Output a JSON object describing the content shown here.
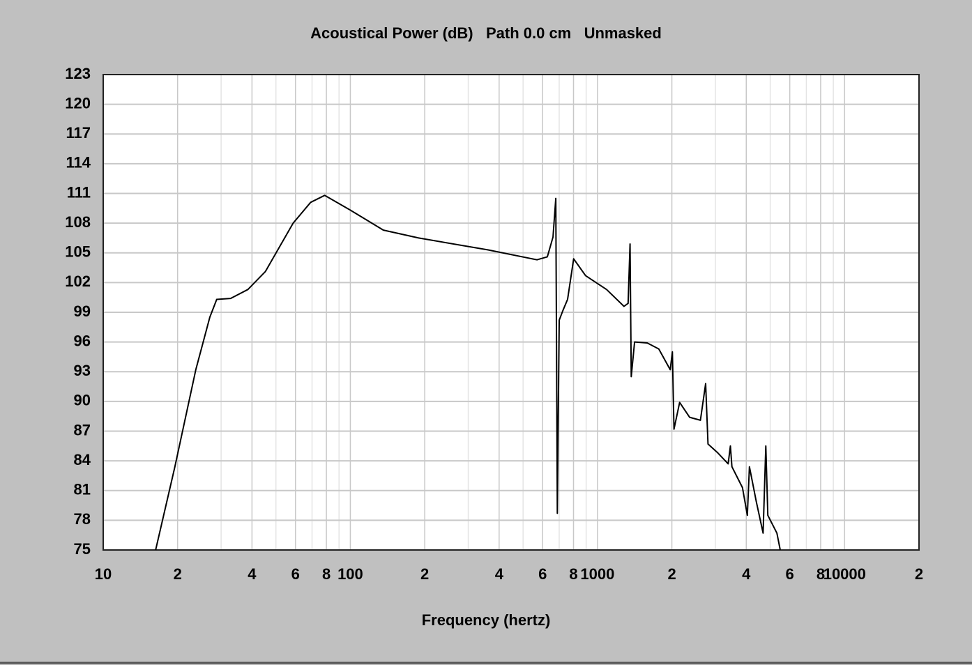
{
  "chart_data": {
    "type": "line",
    "title": "Acoustical Power (dB)   Path 0.0 cm   Unmasked",
    "x_label": "Frequency (hertz)",
    "xscale": "log",
    "grid": true,
    "color": "#000000",
    "xlim": [
      10,
      20000
    ],
    "ylim": [
      75,
      123
    ],
    "xticks": [
      10,
      {
        "value": 20,
        "label": "2"
      },
      {
        "value": 40,
        "label": "4"
      },
      {
        "value": 60,
        "label": "6"
      },
      {
        "value": 80,
        "label": "8"
      },
      100,
      {
        "value": 200,
        "label": "2"
      },
      {
        "value": 400,
        "label": "4"
      },
      {
        "value": 600,
        "label": "6"
      },
      {
        "value": 800,
        "label": "8"
      },
      1000,
      {
        "value": 2000,
        "label": "2"
      },
      {
        "value": 4000,
        "label": "4"
      },
      {
        "value": 6000,
        "label": "6"
      },
      {
        "value": 8000,
        "label": "8"
      },
      10000,
      {
        "value": 20000,
        "label": "2"
      }
    ],
    "xminor": [
      30,
      50,
      70,
      90,
      300,
      500,
      700,
      900,
      3000,
      5000,
      7000,
      9000
    ],
    "yticks": [
      75,
      78,
      81,
      84,
      87,
      90,
      93,
      96,
      99,
      102,
      105,
      108,
      111,
      114,
      117,
      120,
      123
    ],
    "x": [
      16.3,
      19.5,
      23.7,
      27,
      28.8,
      32.8,
      38.5,
      45.3,
      58.7,
      69.1,
      78.7,
      98.7,
      136,
      189,
      361,
      569,
      627,
      661,
      678,
      683,
      688,
      693,
      700,
      725,
      757,
      801,
      895,
      1088,
      1280,
      1330,
      1355,
      1370,
      1413,
      1590,
      1770,
      1970,
      2010,
      2040,
      2150,
      2360,
      2610,
      2740,
      2800,
      3070,
      3380,
      3450,
      3500,
      3860,
      4040,
      4120,
      4390,
      4680,
      4800,
      4890,
      5320,
      5490
    ],
    "values": [
      75,
      83.4,
      93.2,
      98.5,
      100.3,
      100.4,
      101.3,
      103.1,
      108.0,
      110.1,
      110.8,
      109.4,
      107.3,
      106.5,
      105.3,
      104.3,
      104.6,
      106.6,
      110.5,
      94.6,
      78.7,
      86.9,
      98.2,
      99.2,
      100.3,
      104.4,
      102.7,
      101.3,
      99.6,
      99.9,
      105.9,
      92.5,
      96.0,
      95.9,
      95.3,
      93.2,
      95.0,
      87.2,
      89.9,
      88.4,
      88.1,
      91.8,
      85.7,
      84.8,
      83.7,
      85.5,
      83.4,
      81.3,
      78.5,
      83.4,
      79.9,
      76.7,
      85.5,
      78.5,
      76.7,
      75
    ]
  }
}
